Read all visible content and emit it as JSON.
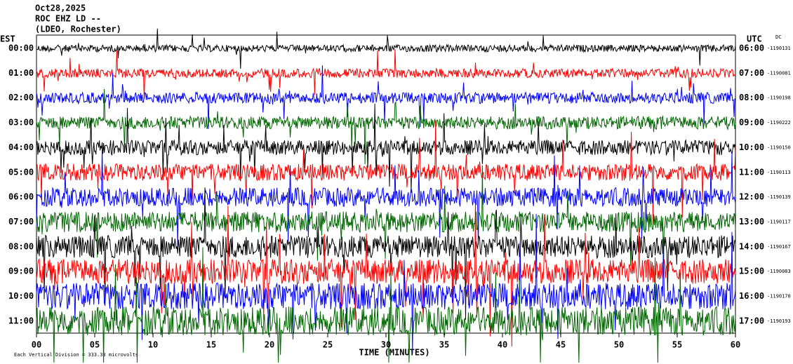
{
  "chart_data": {
    "type": "helicorder",
    "title_lines": [
      "Oct28,2025",
      "ROC EHZ LD --",
      "(LDEO, Rochester)"
    ],
    "left_axis_label": "EST",
    "right_axis_label": "UTC",
    "right_corner_label": "DC",
    "xlabel": "TIME (MINUTES)",
    "footnote": "Each Vertical Division = 333.33 microvolts",
    "xlim": [
      0,
      60
    ],
    "xticks": [
      {
        "value": 0,
        "label": "00"
      },
      {
        "value": 5,
        "label": "05"
      },
      10,
      15,
      20,
      25,
      30,
      35,
      40,
      45,
      50,
      55,
      60
    ],
    "colors": [
      "#000000",
      "#ff0000",
      "#0000ff",
      "#006600"
    ],
    "rows": [
      {
        "est": "00:00",
        "utc": "06:00",
        "offset": -1190131
      },
      {
        "est": "01:00",
        "utc": "07:00",
        "offset": -1190081
      },
      {
        "est": "02:00",
        "utc": "08:00",
        "offset": -1190198
      },
      {
        "est": "03:00",
        "utc": "09:00",
        "offset": -1190222
      },
      {
        "est": "04:00",
        "utc": "10:00",
        "offset": -1190150
      },
      {
        "est": "05:00",
        "utc": "11:00",
        "offset": -1190113
      },
      {
        "est": "06:00",
        "utc": "12:00",
        "offset": -1190139
      },
      {
        "est": "07:00",
        "utc": "13:00",
        "offset": -1190117
      },
      {
        "est": "08:00",
        "utc": "14:00",
        "offset": -1190167
      },
      {
        "est": "09:00",
        "utc": "15:00",
        "offset": -1190083
      },
      {
        "est": "10:00",
        "utc": "16:00",
        "offset": -1190170
      },
      {
        "est": "11:00",
        "utc": "17:00",
        "offset": -1190193
      }
    ]
  }
}
